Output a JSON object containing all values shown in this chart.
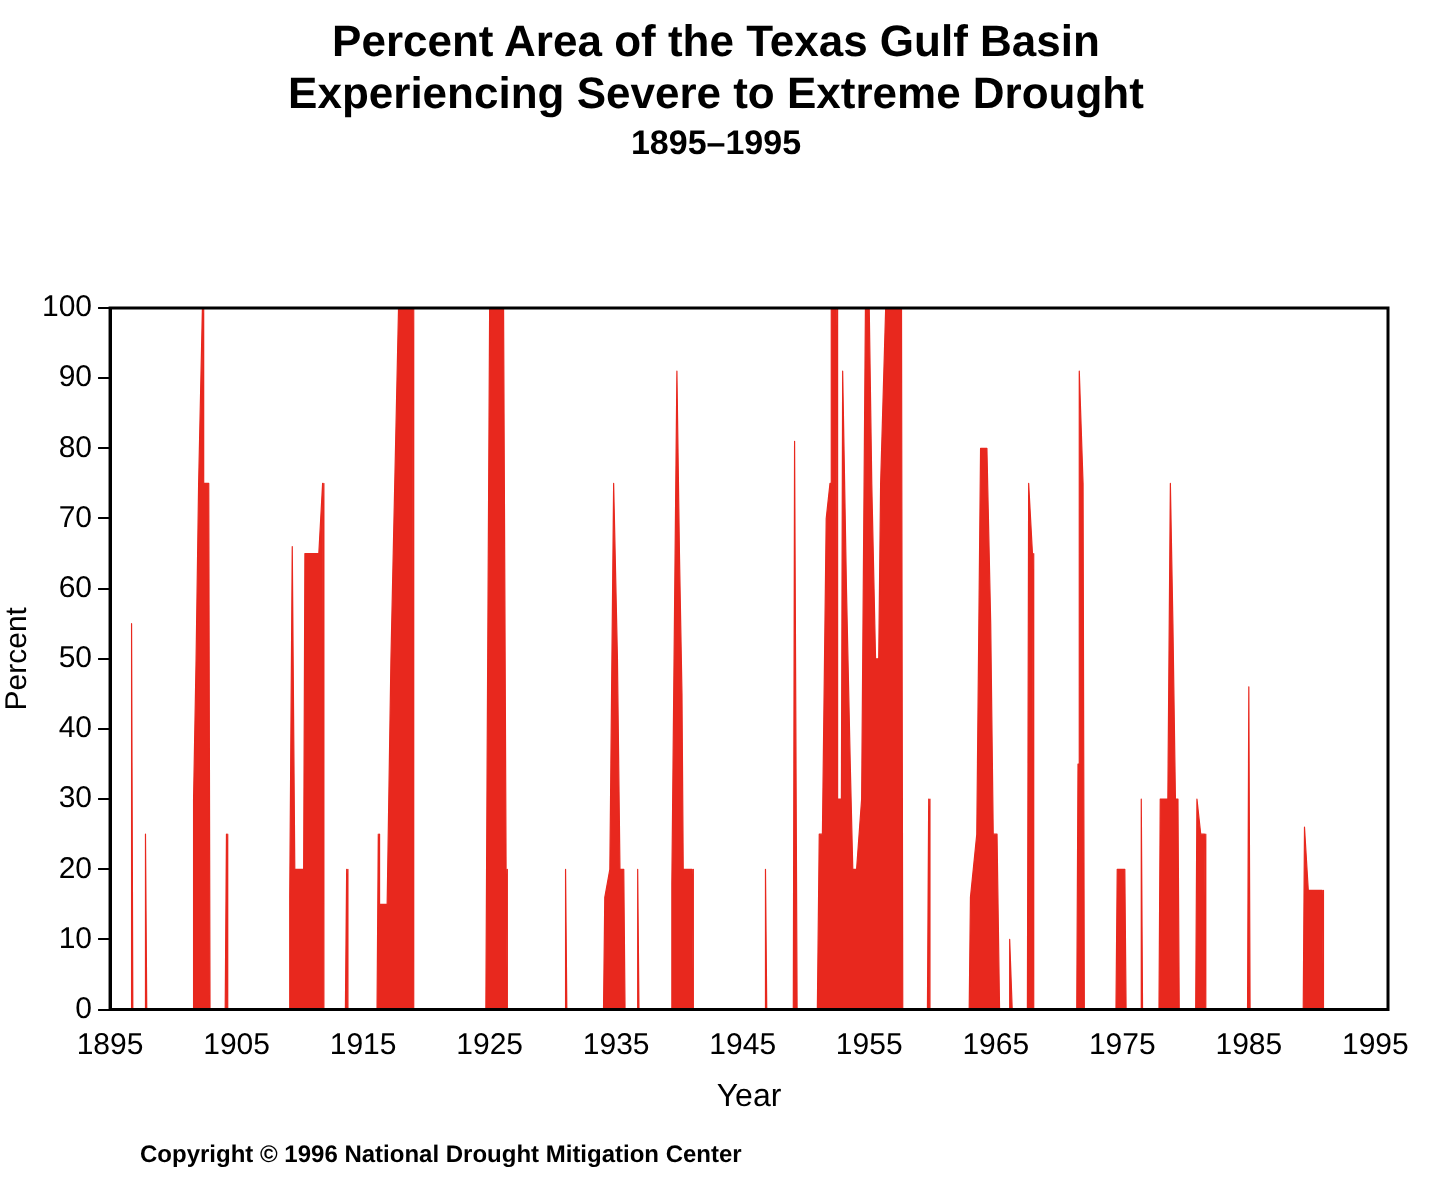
{
  "chart_data": {
    "type": "area",
    "title": "Percent Area of the Texas Gulf Basin Experiencing Severe to Extreme Drought",
    "subtitle": "1895–1995",
    "xlabel": "Year",
    "ylabel": "Percent",
    "annotations": [
      "Copyright © 1996 National Drought Mitigation Center"
    ],
    "marker": "none",
    "xlim": [
      1895,
      1996
    ],
    "xticks": [
      1895,
      1905,
      1915,
      1925,
      1935,
      1945,
      1955,
      1965,
      1975,
      1985,
      1995
    ],
    "ylim": [
      0,
      100
    ],
    "yticks": [
      0,
      10,
      20,
      30,
      40,
      50,
      60,
      70,
      80,
      90,
      100
    ],
    "series": [
      {
        "color": "#e8281e",
        "x": [
          1896.6,
          1896.7,
          1896.8,
          1897.7,
          1897.8,
          1897.9,
          1901.5,
          1901.6,
          1901.8,
          1902.0,
          1902.3,
          1902.4,
          1902.8,
          1902.9,
          1904.1,
          1904.2,
          1904.3,
          1909.1,
          1909.2,
          1909.4,
          1909.6,
          1910.3,
          1910.4,
          1911.5,
          1911.8,
          1911.9,
          1913.6,
          1913.7,
          1913.8,
          1916.1,
          1916.2,
          1916.3,
          1916.9,
          1917.2,
          1917.5,
          1917.8,
          1918.9,
          1919.0,
          1924.7,
          1924.8,
          1925.0,
          1926.1,
          1926.3,
          1926.4,
          1930.9,
          1931.0,
          1931.1,
          1934.0,
          1934.1,
          1934.5,
          1934.8,
          1935.1,
          1935.3,
          1935.6,
          1935.7,
          1936.6,
          1936.7,
          1936.8,
          1939.3,
          1939.4,
          1939.8,
          1940.0,
          1940.2,
          1940.3,
          1941.0,
          1941.1,
          1946.7,
          1946.8,
          1946.9,
          1949.0,
          1949.1,
          1949.3,
          1950.9,
          1951.05,
          1951.3,
          1951.6,
          1951.9,
          1952.0,
          1952.4,
          1952.5,
          1952.8,
          1952.9,
          1953.2,
          1953.5,
          1953.7,
          1954.0,
          1954.4,
          1954.7,
          1955.0,
          1955.2,
          1955.5,
          1955.75,
          1955.9,
          1956.3,
          1957.55,
          1957.65,
          1959.6,
          1959.7,
          1959.8,
          1962.9,
          1963.0,
          1963.5,
          1963.8,
          1964.3,
          1964.6,
          1964.8,
          1965.1,
          1965.3,
          1966.0,
          1966.1,
          1966.3,
          1967.5,
          1967.6,
          1967.9,
          1968.0,
          1971.4,
          1971.5,
          1971.6,
          1971.9,
          1972.0,
          1974.5,
          1974.6,
          1975.2,
          1975.3,
          1976.4,
          1976.5,
          1976.6,
          1977.9,
          1978.0,
          1978.6,
          1978.8,
          1979.0,
          1979.2,
          1979.4,
          1979.5,
          1980.8,
          1980.9,
          1981.2,
          1981.5,
          1981.6,
          1984.9,
          1985.0,
          1985.1,
          1989.3,
          1989.4,
          1989.7,
          1990.8,
          1990.9
        ],
        "values": [
          0,
          55,
          0,
          0,
          25,
          0,
          0,
          30,
          50,
          75,
          100,
          75,
          75,
          0,
          0,
          25,
          0,
          0,
          16,
          66,
          20,
          20,
          65,
          65,
          75,
          0,
          0,
          20,
          0,
          0,
          25,
          15,
          15,
          50,
          75,
          100,
          100,
          0,
          0,
          35,
          100,
          100,
          20,
          0,
          0,
          20,
          0,
          0,
          16,
          20,
          75,
          50,
          20,
          20,
          0,
          0,
          20,
          0,
          0,
          18,
          91,
          65,
          45,
          20,
          20,
          0,
          0,
          20,
          0,
          0,
          81,
          0,
          0,
          25,
          25,
          70,
          75,
          100,
          100,
          30,
          30,
          91,
          60,
          35,
          20,
          20,
          30,
          100,
          100,
          75,
          50,
          50,
          75,
          100,
          100,
          0,
          0,
          30,
          0,
          0,
          16,
          25,
          80,
          80,
          55,
          25,
          25,
          0,
          0,
          10,
          0,
          0,
          75,
          65,
          0,
          0,
          35,
          91,
          75,
          0,
          0,
          20,
          20,
          0,
          0,
          30,
          0,
          0,
          30,
          30,
          75,
          55,
          30,
          30,
          0,
          0,
          30,
          25,
          25,
          0,
          0,
          46,
          0,
          0,
          26,
          17,
          17,
          0
        ]
      }
    ]
  }
}
